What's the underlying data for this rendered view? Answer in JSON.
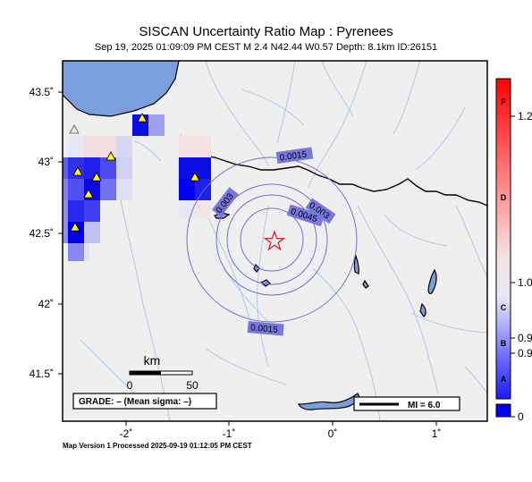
{
  "title": "SISCAN Uncertainty Ratio Map : Pyrenees",
  "subtitle": "Sep 19, 2025 01:09:09 PM CEST   M 2.4   N42.44 W0.57   Depth: 8.1km   ID:26151",
  "footer": "Map Version 1 Processed 2025-09-19 01:12:05 PM CEST",
  "axes": {
    "lon_ticks": [
      "-2˚",
      "-1˚",
      "0˚",
      "1˚"
    ],
    "lat_ticks": [
      "43.5˚",
      "43˚",
      "42.5˚",
      "42˚",
      "41.5˚"
    ]
  },
  "contours": [
    {
      "label": "0.0015"
    },
    {
      "label": "0.003"
    },
    {
      "label": "0.003"
    },
    {
      "label": "0.0045"
    },
    {
      "label": "0.0015"
    }
  ],
  "scale_bar": {
    "unit": "km",
    "start": "0",
    "end": "50"
  },
  "grade_box": "GRADE: – (Mean sigma: –)",
  "mi_legend": "MI = 6.0",
  "colorbar": {
    "grades": [
      "F",
      "D",
      "C",
      "B",
      "A"
    ],
    "values": [
      "1.2",
      "1.0",
      "0.9",
      "0.9",
      "0"
    ],
    "top_color": "#ff0000",
    "mid_color": "#f0f0f0",
    "bottom_color": "#0000ff"
  },
  "epicenter": {
    "lon": -0.57,
    "lat": 42.44,
    "color": "#e02020"
  },
  "colors": {
    "land": "#efefef",
    "sea": "#7b9fdc",
    "rivers": "#a9c3e8",
    "contour": "#7070d8",
    "label_bg": "#7777dd",
    "station": "#ffff00"
  }
}
